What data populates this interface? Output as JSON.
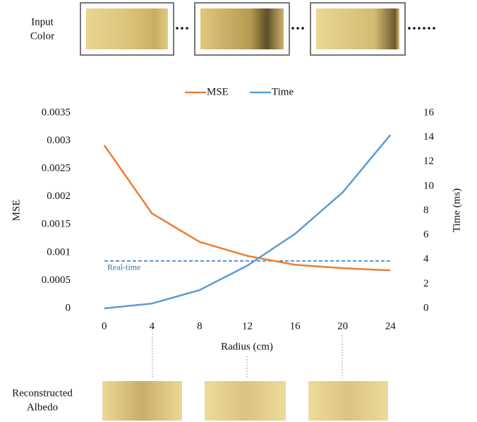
{
  "input_label": [
    "Input",
    "Color"
  ],
  "output_label": [
    "Reconstructed",
    "Albedo"
  ],
  "chart_data": {
    "type": "line",
    "x_label": "Radius (cm)",
    "y_label": "MSE",
    "y2_label": "Time (ms)",
    "x": [
      0,
      4,
      8,
      12,
      16,
      20,
      24
    ],
    "xlim": [
      -2,
      26
    ],
    "xticks": [
      0,
      4,
      8,
      12,
      16,
      20,
      24
    ],
    "ylim": [
      0,
      0.0035
    ],
    "yticks": [
      0,
      0.0005,
      0.001,
      0.0015,
      0.002,
      0.0025,
      0.003,
      0.0035
    ],
    "y2lim": [
      0,
      16
    ],
    "y2ticks": [
      0,
      2,
      4,
      6,
      8,
      10,
      12,
      14,
      16
    ],
    "series": [
      {
        "name": "MSE",
        "color": "#ed7d31",
        "values": [
          0.00292,
          0.0017,
          0.00119,
          0.00094,
          0.00078,
          0.00072,
          0.00068
        ]
      },
      {
        "name": "Time",
        "color": "#5b9bd5",
        "axis": "y2",
        "values": [
          0,
          0.4,
          1.5,
          3.5,
          6.1,
          9.5,
          14.2
        ]
      }
    ],
    "reference_line": {
      "label": "Real-time",
      "value": 0.00085,
      "color": "#2e75b6"
    },
    "legend": "top",
    "grid": false
  }
}
